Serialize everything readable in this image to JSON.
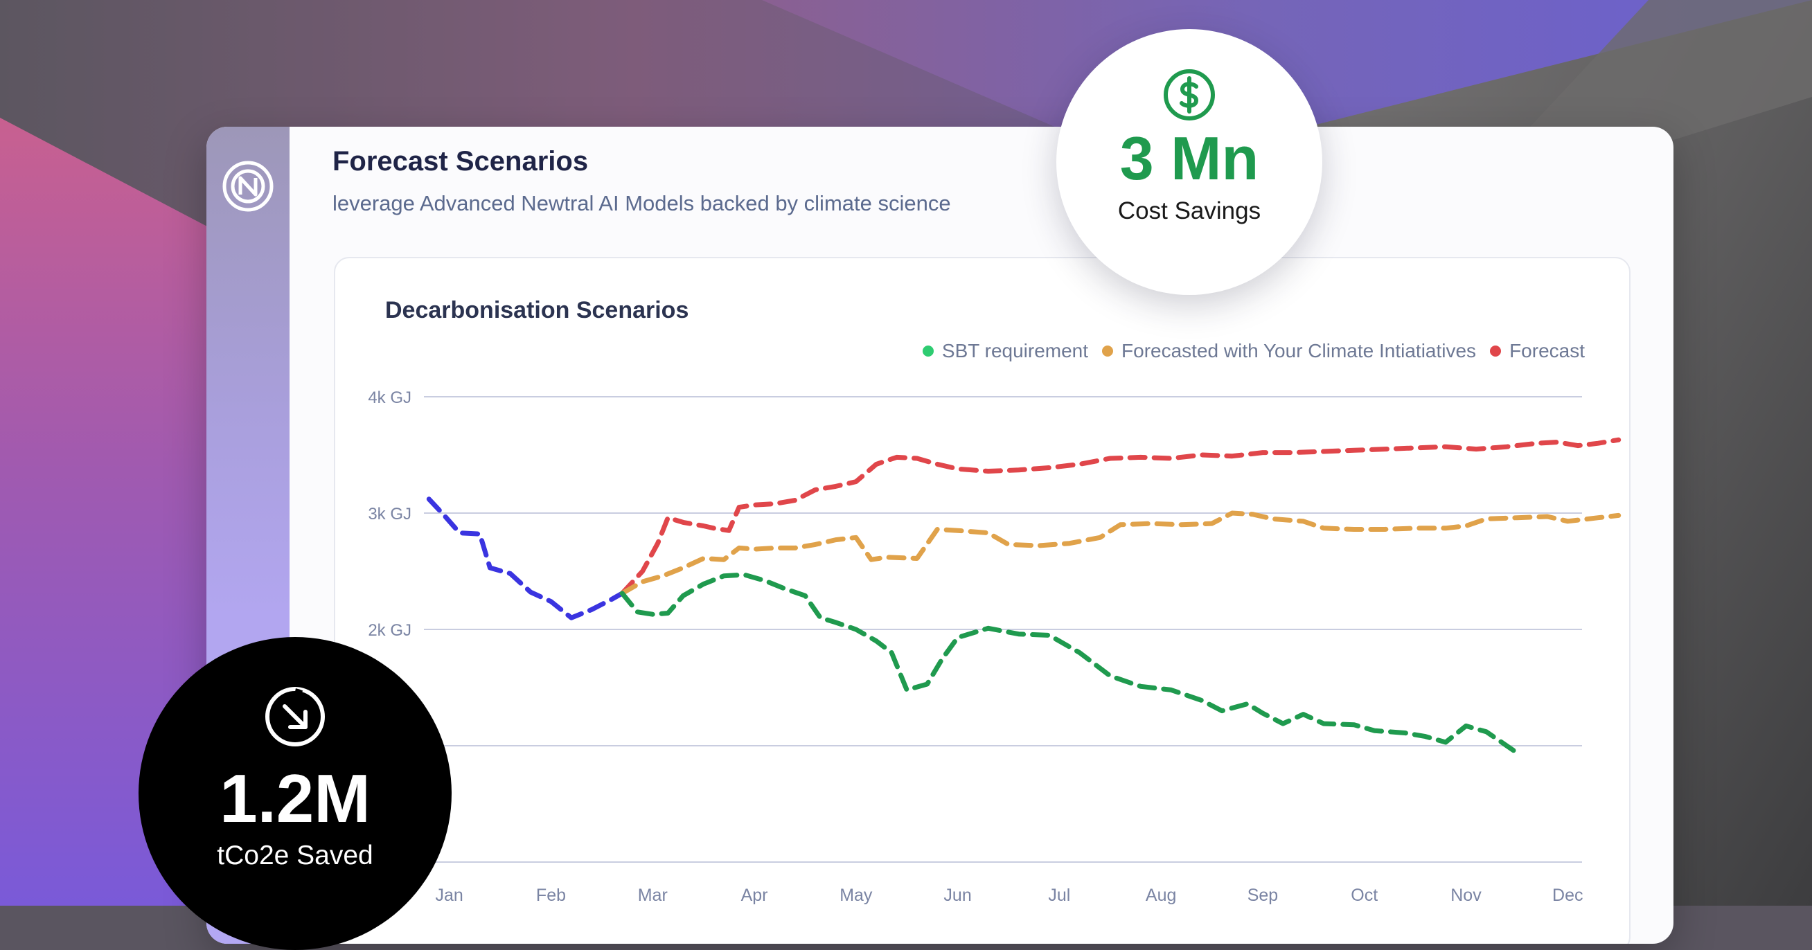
{
  "card": {
    "title": "Forecast Scenarios",
    "subtitle": "leverage Advanced Newtral AI Models backed by climate science"
  },
  "badges": {
    "cost": {
      "value": "3 Mn",
      "label": "Cost Savings",
      "icon": "dollar-circle-icon",
      "color": "#1f9a4e"
    },
    "saved": {
      "value": "1.2M",
      "label": "tCo2e Saved",
      "icon": "arrow-down-right-circle-icon"
    }
  },
  "logo": {
    "icon": "newtral-logo-icon"
  },
  "colors": {
    "sbt": "#1f9a4e",
    "sbt_legend": "#2ecc71",
    "climate": "#e0a24a",
    "forecast": "#e0464a",
    "history": "#3a34e0"
  },
  "chart_data": {
    "type": "line",
    "title": "Decarbonisation Scenarios",
    "x_ticks": [
      "Jan",
      "Feb",
      "Mar",
      "Apr",
      "May",
      "Jun",
      "Jul",
      "Aug",
      "Sep",
      "Oct",
      "Nov",
      "Dec"
    ],
    "y_ticks": [
      {
        "value": 4000,
        "label": "4k GJ"
      },
      {
        "value": 3000,
        "label": "3k GJ"
      },
      {
        "value": 2000,
        "label": "2k GJ"
      },
      {
        "value": 1000,
        "label": ""
      },
      {
        "value": 0,
        "label": ""
      }
    ],
    "ylim": [
      0,
      4000
    ],
    "xlim": [
      0.75,
      12.55
    ],
    "grid": true,
    "legend_position": "top-right",
    "legend": [
      {
        "label": "SBT requirement",
        "color": "#2ecc71"
      },
      {
        "label": "Forecasted with Your Climate Intiatiatives",
        "color": "#e0a24a"
      },
      {
        "label": "Forecast",
        "color": "#e0464a"
      }
    ],
    "series": [
      {
        "key": "history",
        "color": "#3a34e0",
        "points": [
          [
            0.8,
            3120
          ],
          [
            0.95,
            2980
          ],
          [
            1.1,
            2830
          ],
          [
            1.3,
            2820
          ],
          [
            1.4,
            2530
          ],
          [
            1.6,
            2480
          ],
          [
            1.8,
            2320
          ],
          [
            2.0,
            2240
          ],
          [
            2.2,
            2100
          ],
          [
            2.4,
            2170
          ],
          [
            2.6,
            2260
          ],
          [
            2.7,
            2310
          ]
        ]
      },
      {
        "key": "forecast",
        "color": "#e0464a",
        "points": [
          [
            2.7,
            2310
          ],
          [
            2.9,
            2500
          ],
          [
            3.05,
            2740
          ],
          [
            3.15,
            2960
          ],
          [
            3.3,
            2920
          ],
          [
            3.5,
            2890
          ],
          [
            3.6,
            2870
          ],
          [
            3.75,
            2850
          ],
          [
            3.85,
            3050
          ],
          [
            4.0,
            3070
          ],
          [
            4.2,
            3080
          ],
          [
            4.4,
            3110
          ],
          [
            4.6,
            3200
          ],
          [
            4.8,
            3230
          ],
          [
            5.0,
            3270
          ],
          [
            5.2,
            3420
          ],
          [
            5.4,
            3480
          ],
          [
            5.6,
            3470
          ],
          [
            5.8,
            3420
          ],
          [
            6.0,
            3380
          ],
          [
            6.3,
            3360
          ],
          [
            6.6,
            3370
          ],
          [
            6.9,
            3390
          ],
          [
            7.2,
            3420
          ],
          [
            7.5,
            3470
          ],
          [
            7.8,
            3480
          ],
          [
            8.1,
            3470
          ],
          [
            8.4,
            3500
          ],
          [
            8.7,
            3490
          ],
          [
            9.0,
            3520
          ],
          [
            9.3,
            3520
          ],
          [
            9.6,
            3530
          ],
          [
            9.9,
            3540
          ],
          [
            10.2,
            3550
          ],
          [
            10.5,
            3560
          ],
          [
            10.8,
            3570
          ],
          [
            11.1,
            3550
          ],
          [
            11.4,
            3570
          ],
          [
            11.7,
            3600
          ],
          [
            11.9,
            3610
          ],
          [
            12.1,
            3580
          ],
          [
            12.3,
            3600
          ],
          [
            12.5,
            3630
          ]
        ]
      },
      {
        "key": "climate",
        "color": "#e0a24a",
        "points": [
          [
            2.7,
            2310
          ],
          [
            2.9,
            2410
          ],
          [
            3.1,
            2460
          ],
          [
            3.3,
            2530
          ],
          [
            3.5,
            2610
          ],
          [
            3.7,
            2600
          ],
          [
            3.85,
            2700
          ],
          [
            4.0,
            2690
          ],
          [
            4.2,
            2700
          ],
          [
            4.4,
            2700
          ],
          [
            4.6,
            2730
          ],
          [
            4.8,
            2770
          ],
          [
            5.0,
            2790
          ],
          [
            5.15,
            2600
          ],
          [
            5.3,
            2620
          ],
          [
            5.6,
            2610
          ],
          [
            5.8,
            2860
          ],
          [
            6.0,
            2850
          ],
          [
            6.3,
            2830
          ],
          [
            6.5,
            2730
          ],
          [
            6.8,
            2720
          ],
          [
            7.1,
            2740
          ],
          [
            7.4,
            2790
          ],
          [
            7.6,
            2900
          ],
          [
            7.9,
            2910
          ],
          [
            8.2,
            2900
          ],
          [
            8.5,
            2910
          ],
          [
            8.7,
            3000
          ],
          [
            8.9,
            2990
          ],
          [
            9.1,
            2950
          ],
          [
            9.4,
            2930
          ],
          [
            9.6,
            2870
          ],
          [
            9.9,
            2860
          ],
          [
            10.2,
            2860
          ],
          [
            10.5,
            2870
          ],
          [
            10.8,
            2870
          ],
          [
            11.0,
            2890
          ],
          [
            11.2,
            2950
          ],
          [
            11.5,
            2960
          ],
          [
            11.8,
            2970
          ],
          [
            12.0,
            2930
          ],
          [
            12.3,
            2960
          ],
          [
            12.5,
            2980
          ]
        ]
      },
      {
        "key": "sbt",
        "color": "#1f9a4e",
        "points": [
          [
            2.7,
            2310
          ],
          [
            2.85,
            2150
          ],
          [
            3.0,
            2130
          ],
          [
            3.15,
            2140
          ],
          [
            3.3,
            2290
          ],
          [
            3.5,
            2390
          ],
          [
            3.7,
            2460
          ],
          [
            3.9,
            2470
          ],
          [
            4.1,
            2420
          ],
          [
            4.3,
            2350
          ],
          [
            4.5,
            2290
          ],
          [
            4.65,
            2100
          ],
          [
            4.8,
            2060
          ],
          [
            5.0,
            2000
          ],
          [
            5.2,
            1900
          ],
          [
            5.35,
            1800
          ],
          [
            5.5,
            1480
          ],
          [
            5.7,
            1530
          ],
          [
            5.85,
            1750
          ],
          [
            6.0,
            1930
          ],
          [
            6.3,
            2010
          ],
          [
            6.6,
            1960
          ],
          [
            6.9,
            1950
          ],
          [
            7.2,
            1800
          ],
          [
            7.5,
            1600
          ],
          [
            7.8,
            1510
          ],
          [
            8.1,
            1480
          ],
          [
            8.4,
            1390
          ],
          [
            8.6,
            1300
          ],
          [
            8.85,
            1360
          ],
          [
            9.0,
            1280
          ],
          [
            9.2,
            1190
          ],
          [
            9.4,
            1270
          ],
          [
            9.6,
            1190
          ],
          [
            9.9,
            1180
          ],
          [
            10.1,
            1130
          ],
          [
            10.4,
            1110
          ],
          [
            10.6,
            1080
          ],
          [
            10.8,
            1030
          ],
          [
            11.0,
            1170
          ],
          [
            11.2,
            1120
          ],
          [
            11.4,
            1000
          ],
          [
            11.5,
            940
          ]
        ]
      }
    ]
  }
}
